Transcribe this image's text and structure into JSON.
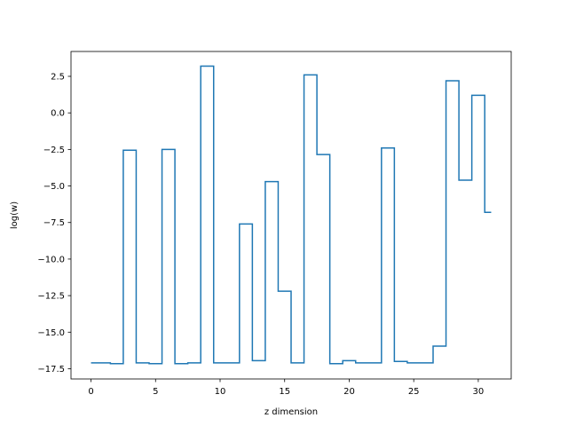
{
  "chart_data": {
    "type": "line",
    "drawstyle": "steps-mid",
    "xlabel": "z dimension",
    "ylabel": "log(w)",
    "xlim": [
      -1.55,
      32.55
    ],
    "ylim": [
      -18.2,
      4.2
    ],
    "xticks": [
      0,
      5,
      10,
      15,
      20,
      25,
      30
    ],
    "xtick_labels": [
      "0",
      "5",
      "10",
      "15",
      "20",
      "25",
      "30"
    ],
    "yticks": [
      2.5,
      0.0,
      -2.5,
      -5.0,
      -7.5,
      -10.0,
      -12.5,
      -15.0,
      -17.5
    ],
    "ytick_labels": [
      "2.5",
      "0.0",
      "−2.5",
      "−5.0",
      "−7.5",
      "−10.0",
      "−12.5",
      "−15.0",
      "−17.5"
    ],
    "grid": false,
    "line_color": "#1f77b4",
    "series": [
      {
        "x": [
          0,
          1,
          2,
          3,
          4,
          5,
          6,
          7,
          8,
          9,
          10,
          11,
          12,
          13,
          14,
          15,
          16,
          17,
          18,
          19,
          20,
          21,
          22,
          23,
          24,
          25,
          26,
          27,
          28,
          29,
          30,
          31
        ],
        "values": [
          -17.1,
          -17.1,
          -17.15,
          -2.55,
          -17.1,
          -17.15,
          -2.5,
          -17.15,
          -17.1,
          3.2,
          -17.1,
          -17.1,
          -7.6,
          -16.95,
          -4.7,
          -12.2,
          -17.1,
          2.6,
          -2.85,
          -17.15,
          -16.95,
          -17.1,
          -17.1,
          -2.4,
          -17.0,
          -17.1,
          -17.1,
          -15.95,
          2.2,
          -4.6,
          1.2,
          -6.8
        ]
      }
    ]
  }
}
